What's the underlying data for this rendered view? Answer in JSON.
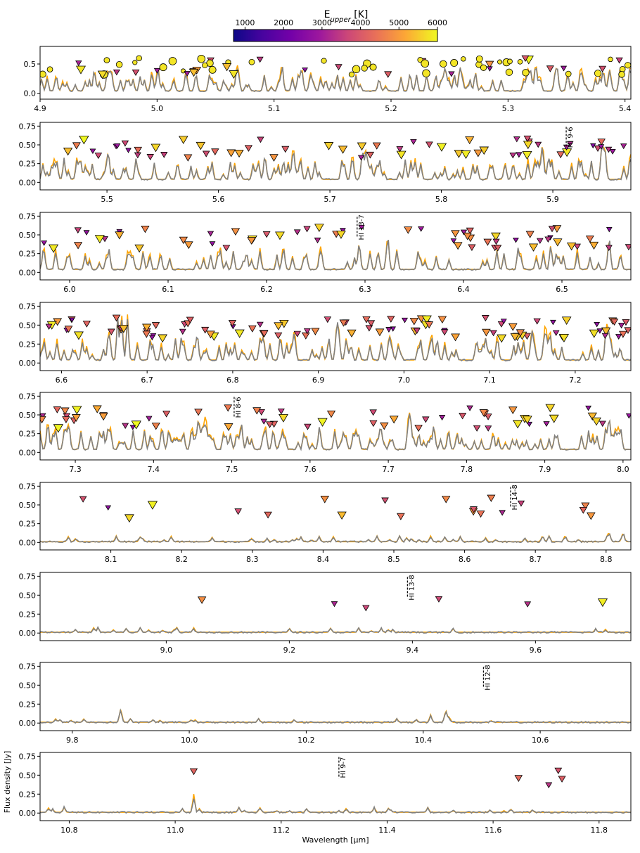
{
  "colorbar": {
    "title": "E",
    "title_sub": "upper",
    "title_unit": " [K]",
    "ticks": [
      "1000",
      "2000",
      "3000",
      "4000",
      "5000",
      "6000"
    ],
    "range": [
      700,
      6000
    ]
  },
  "xlabel": "Wavelength [μm]",
  "ylabel": "Flux density [Jy]",
  "chart_data": {
    "type": "line",
    "series_names": [
      "",
      ""
    ],
    "colors": {
      "model": "#ffa500",
      "data": "#808080"
    },
    "panels": [
      {
        "xlim": [
          4.9,
          5.405
        ],
        "ylim": [
          -0.1,
          0.8
        ],
        "yticks": [
          "0.0",
          "0.5"
        ],
        "xticks": [
          "4.9",
          "5.0",
          "5.1",
          "5.2",
          "5.3",
          "5.4"
        ],
        "density": "high",
        "markers": "circle+triangle"
      },
      {
        "xlim": [
          5.44,
          5.97
        ],
        "ylim": [
          -0.1,
          0.8
        ],
        "yticks": [
          "0.00",
          "0.25",
          "0.50",
          "0.75"
        ],
        "xticks": [
          "5.5",
          "5.6",
          "5.7",
          "5.8",
          "5.9"
        ],
        "hi_line": {
          "label": "HI 9-6",
          "x": 5.912
        }
      },
      {
        "xlim": [
          5.97,
          6.57
        ],
        "ylim": [
          -0.1,
          0.8
        ],
        "yticks": [
          "0.00",
          "0.25",
          "0.50",
          "0.75"
        ],
        "xticks": [
          "6.0",
          "6.1",
          "6.2",
          "6.3",
          "6.4",
          "6.5"
        ],
        "hi_line": {
          "label": "HI 13-7",
          "x": 6.292
        }
      },
      {
        "xlim": [
          6.575,
          7.265
        ],
        "ylim": [
          -0.1,
          0.8
        ],
        "yticks": [
          "0.00",
          "0.25",
          "0.50",
          "0.75"
        ],
        "xticks": [
          "6.6",
          "6.7",
          "6.8",
          "6.9",
          "7.0",
          "7.1",
          "7.2"
        ]
      },
      {
        "xlim": [
          7.255,
          8.01
        ],
        "ylim": [
          -0.1,
          0.8
        ],
        "yticks": [
          "0.00",
          "0.25",
          "0.50",
          "0.75"
        ],
        "xticks": [
          "7.3",
          "7.4",
          "7.5",
          "7.6",
          "7.7",
          "7.8",
          "7.9",
          "8.0"
        ],
        "hi_line": {
          "label": "HI 8-6",
          "x": 7.503
        }
      },
      {
        "xlim": [
          8.0,
          8.835
        ],
        "ylim": [
          -0.1,
          0.8
        ],
        "yticks": [
          "0.00",
          "0.25",
          "0.50",
          "0.75"
        ],
        "xticks": [
          "8.1",
          "8.2",
          "8.3",
          "8.4",
          "8.5",
          "8.6",
          "8.7",
          "8.8"
        ],
        "hi_line": {
          "label": "HI 14-8",
          "x": 8.665
        }
      },
      {
        "xlim": [
          8.795,
          9.755
        ],
        "ylim": [
          -0.1,
          0.8
        ],
        "yticks": [
          "0.00",
          "0.25",
          "0.50",
          "0.75"
        ],
        "xticks": [
          "9.0",
          "9.2",
          "9.4",
          "9.6"
        ],
        "hi_line": {
          "label": "HI 13-8",
          "x": 9.392
        }
      },
      {
        "xlim": [
          9.745,
          10.755
        ],
        "ylim": [
          -0.1,
          0.8
        ],
        "yticks": [
          "0.00",
          "0.25",
          "0.50",
          "0.75"
        ],
        "xticks": [
          "9.8",
          "10.0",
          "10.2",
          "10.4",
          "10.6"
        ],
        "hi_line": {
          "label": "HI 12-8",
          "x": 10.503
        }
      },
      {
        "xlim": [
          10.745,
          11.86
        ],
        "ylim": [
          -0.1,
          0.8
        ],
        "yticks": [
          "0.00",
          "0.25",
          "0.50",
          "0.75"
        ],
        "xticks": [
          "10.8",
          "11.0",
          "11.2",
          "11.4",
          "11.6",
          "11.8"
        ],
        "hi_line": {
          "label": "HI 9-7",
          "x": 11.309
        },
        "sparse_markers": [
          {
            "x": 11.035,
            "y": 0.55,
            "e": 4200
          },
          {
            "x": 11.648,
            "y": 0.46,
            "e": 4300
          },
          {
            "x": 11.705,
            "y": 0.37,
            "e": 3400
          },
          {
            "x": 11.723,
            "y": 0.56,
            "e": 3900
          },
          {
            "x": 11.73,
            "y": 0.45,
            "e": 4100
          }
        ]
      }
    ]
  }
}
